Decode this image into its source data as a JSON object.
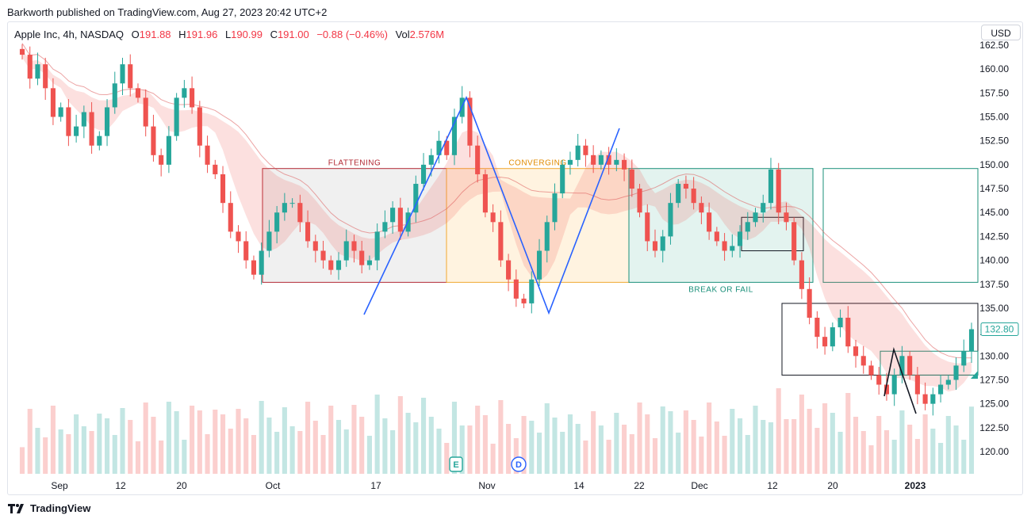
{
  "header": {
    "published": "Barkworth published on TradingView.com, Aug 27, 2023 20:42 UTC+2"
  },
  "legend": {
    "symbol": "Apple Inc, 4h, NASDAQ",
    "open_label": "O",
    "open": "191.88",
    "high_label": "H",
    "high": "191.96",
    "low_label": "L",
    "low": "190.99",
    "close_label": "C",
    "close": "191.00",
    "change": "−0.88 (−0.46%)",
    "vol_label": "Vol",
    "vol": "2.576M"
  },
  "currency_button": "USD",
  "footer": {
    "brand": "TradingView"
  },
  "colors": {
    "up": "#26a69a",
    "down": "#ef5350",
    "grey_box": "#f0f0f0",
    "orange_box": "#fff3e0",
    "teal_box": "#e3f3ef"
  },
  "chart_data": {
    "type": "candlestick",
    "symbol": "AAPL",
    "interval": "4h",
    "y_axis": {
      "ticks": [
        "162.50",
        "160.00",
        "157.50",
        "155.00",
        "152.50",
        "150.00",
        "147.50",
        "145.00",
        "142.50",
        "140.00",
        "137.50",
        "135.00",
        "132.50",
        "130.00",
        "127.50",
        "125.00",
        "122.50",
        "120.00"
      ],
      "range": [
        118.5,
        163.5
      ]
    },
    "x_axis": {
      "ticks": [
        "Sep",
        "12",
        "20",
        "Oct",
        "17",
        "Nov",
        "14",
        "22",
        "Dec",
        "12",
        "20",
        "2023"
      ]
    },
    "last_price": "132.80",
    "annotations": [
      {
        "label": "FLATTENING",
        "y_top": 149.6,
        "y_bottom": 137.7
      },
      {
        "label": "CONVERGING",
        "y_top": 149.6,
        "y_bottom": 137.7
      },
      {
        "label": "BREAK OR FAIL",
        "y_top": 149.6,
        "y_bottom": 137.7
      }
    ],
    "event_markers": [
      "E",
      "D"
    ],
    "close_path": [
      161.5,
      159,
      160.5,
      158,
      155,
      156,
      153,
      154,
      155.5,
      152,
      153,
      156,
      158.5,
      160.5,
      158,
      157,
      154,
      151,
      150,
      153,
      157,
      158,
      156,
      152,
      150,
      149,
      146,
      143,
      142,
      140,
      138.5,
      141,
      143,
      145,
      146,
      146,
      144,
      142,
      141,
      140,
      139,
      140,
      142,
      141,
      139.5,
      140,
      143,
      144,
      145.5,
      143,
      145,
      148,
      150,
      151,
      152.5,
      151,
      155,
      157,
      152,
      149,
      145,
      144,
      140,
      138,
      136,
      135.5,
      138,
      141,
      144,
      147,
      150,
      150.5,
      152,
      151,
      150,
      151,
      150,
      150.5,
      149.5,
      147.5,
      145,
      142,
      141,
      142.5,
      146,
      148,
      147.5,
      146,
      145,
      143,
      142,
      141,
      141.5,
      143,
      144,
      145,
      146,
      149.5,
      145,
      144,
      140,
      137,
      134,
      132,
      131,
      133,
      134,
      131,
      130,
      129,
      128,
      127,
      126,
      128,
      130,
      128,
      126,
      125,
      126,
      127,
      127.5,
      129,
      130.5,
      132.8
    ]
  }
}
